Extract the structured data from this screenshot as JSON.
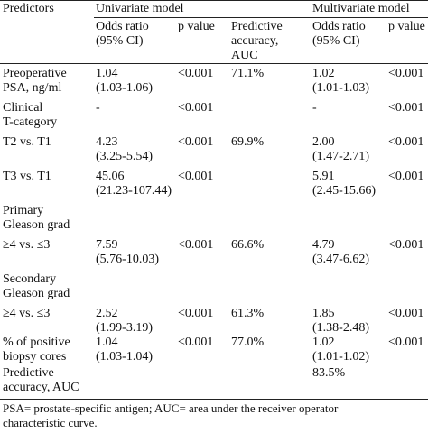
{
  "headers": {
    "predictors": "Predictors",
    "univariate": "Univariate model",
    "multivariate": "Multivariate model",
    "uni_or_1": "Odds ratio",
    "uni_or_2": "(95% CI)",
    "uni_p": "p value",
    "uni_auc_1": "Predictive",
    "uni_auc_2": "accuracy,",
    "uni_auc_3": "AUC",
    "multi_or_1": "Odds ratio",
    "multi_or_2": "(95% CI)",
    "multi_p": "p value"
  },
  "rows": [
    {
      "pred": [
        "Preoperative",
        "PSA, ng/ml"
      ],
      "u_or": [
        "1.04",
        "(1.03-1.06)"
      ],
      "u_p": "<0.001",
      "u_auc": "71.1%",
      "m_or": [
        "1.02",
        "(1.01-1.03)"
      ],
      "m_p": "<0.001"
    },
    {
      "pred": [
        "Clinical",
        "T-category"
      ],
      "u_or": [
        "-"
      ],
      "u_p": "<0.001",
      "u_auc": "",
      "m_or": [
        "-"
      ],
      "m_p": "<0.001"
    },
    {
      "pred": [
        "T2 vs. T1"
      ],
      "u_or": [
        "4.23",
        "(3.25-5.54)"
      ],
      "u_p": "<0.001",
      "u_auc": "69.9%",
      "m_or": [
        "2.00",
        "(1.47-2.71)"
      ],
      "m_p": "<0.001"
    },
    {
      "pred": [
        "T3 vs. T1"
      ],
      "u_or": [
        "45.06",
        "(21.23-107.44)"
      ],
      "u_p": "<0.001",
      "u_auc": "",
      "m_or": [
        "5.91",
        "(2.45-15.66)"
      ],
      "m_p": "<0.001"
    },
    {
      "pred": [
        "Primary",
        "Gleason grad"
      ],
      "u_or": [],
      "u_p": "",
      "u_auc": "",
      "m_or": [],
      "m_p": ""
    },
    {
      "pred": [
        "≥4 vs. ≤3"
      ],
      "u_or": [
        "7.59",
        "(5.76-10.03)"
      ],
      "u_p": "<0.001",
      "u_auc": "66.6%",
      "m_or": [
        "4.79",
        "(3.47-6.62)"
      ],
      "m_p": "<0.001"
    },
    {
      "pred": [
        "Secondary",
        "Gleason grad"
      ],
      "u_or": [],
      "u_p": "",
      "u_auc": "",
      "m_or": [],
      "m_p": ""
    },
    {
      "pred": [
        "≥4 vs. ≤3"
      ],
      "u_or": [
        "2.52",
        "(1.99-3.19)"
      ],
      "u_p": "<0.001",
      "u_auc": "61.3%",
      "m_or": [
        "1.85",
        "(1.38-2.48)"
      ],
      "m_p": "<0.001"
    },
    {
      "pred": [
        "% of positive",
        "biopsy cores"
      ],
      "u_or": [
        "1.04",
        "(1.03-1.04)"
      ],
      "u_p": "<0.001",
      "u_auc": "77.0%",
      "m_or": [
        "1.02",
        "(1.01-1.02)"
      ],
      "m_p": "<0.001"
    },
    {
      "pred": [
        "Predictive",
        "accuracy, AUC"
      ],
      "u_or": [],
      "u_p": "",
      "u_auc": "",
      "m_or": [
        "83.5%"
      ],
      "m_p": ""
    }
  ],
  "footnote": [
    "PSA= prostate-specific antigen; AUC= area under the receiver operator",
    "characteristic curve."
  ]
}
